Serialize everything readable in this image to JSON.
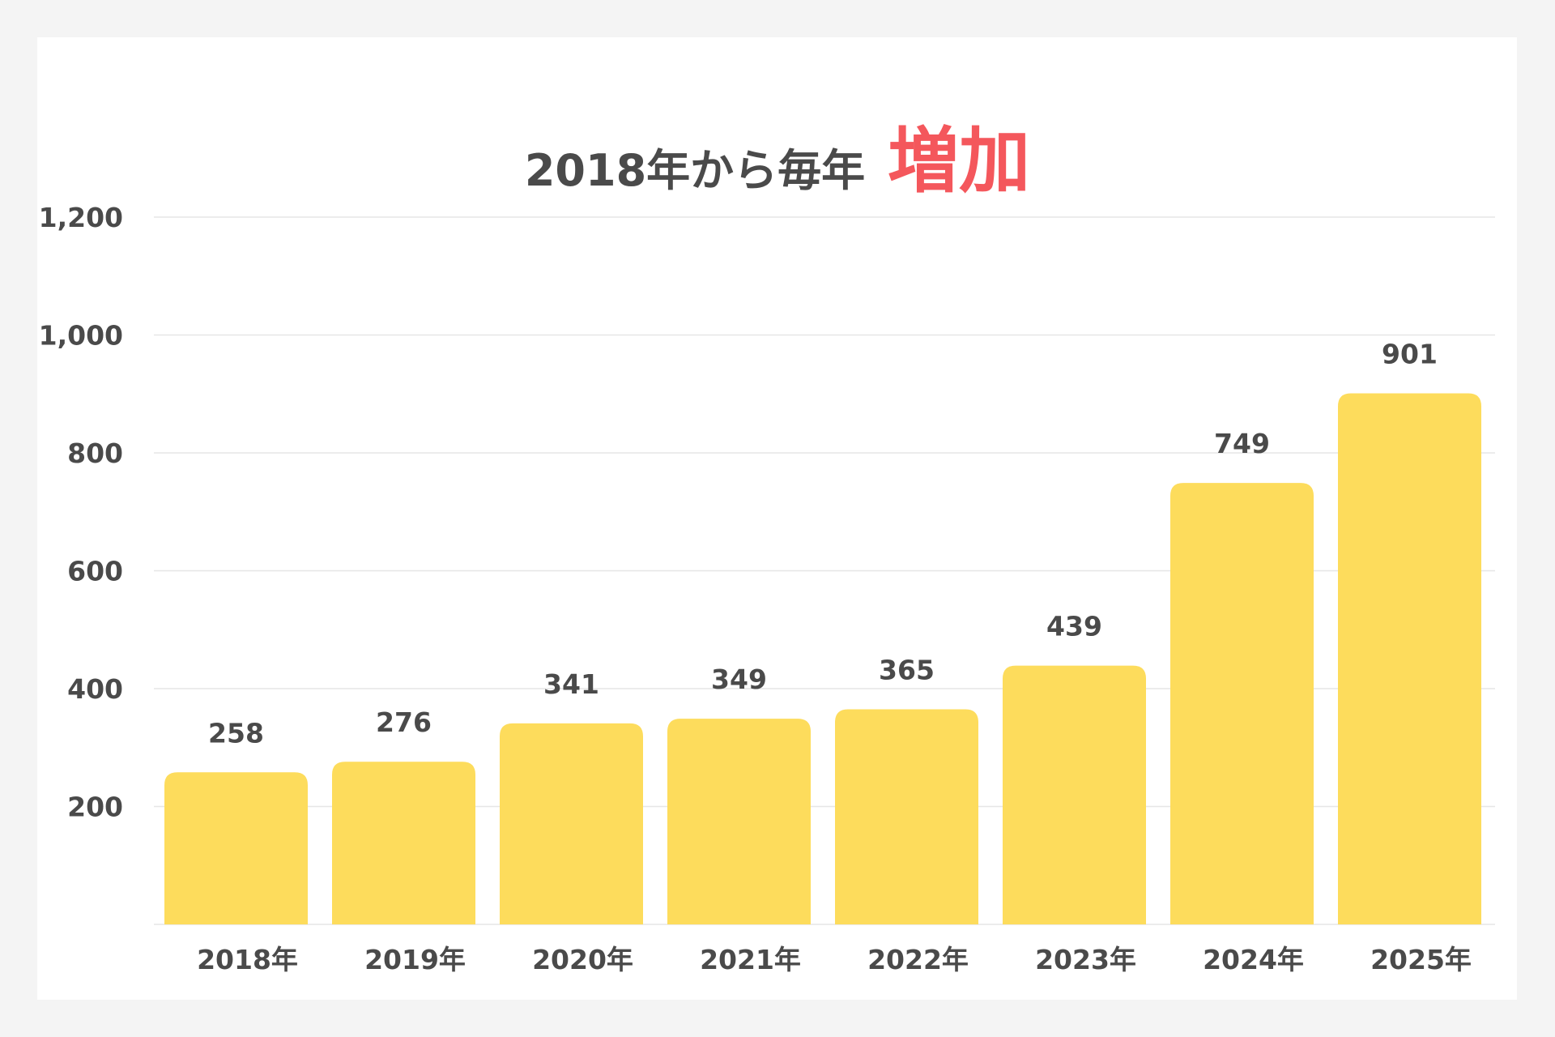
{
  "chart_data": {
    "type": "bar",
    "title": "2018年から毎年",
    "title_emphasis": "増加",
    "categories": [
      "2018年",
      "2019年",
      "2020年",
      "2021年",
      "2022年",
      "2023年",
      "2024年",
      "2025年"
    ],
    "values": [
      258,
      276,
      341,
      349,
      365,
      439,
      749,
      901
    ],
    "ylim": [
      0,
      1200
    ],
    "yticks": [
      200,
      400,
      600,
      800,
      1000,
      1200
    ],
    "ytick_labels": [
      "200",
      "400",
      "600",
      "800",
      "1,000",
      "1,200"
    ],
    "grid": true,
    "legend": "none",
    "bar_color": "#fddc5c",
    "emphasis_color": "#f4575c",
    "text_color": "#4a4a4a",
    "grid_color": "#e6e6e6"
  }
}
